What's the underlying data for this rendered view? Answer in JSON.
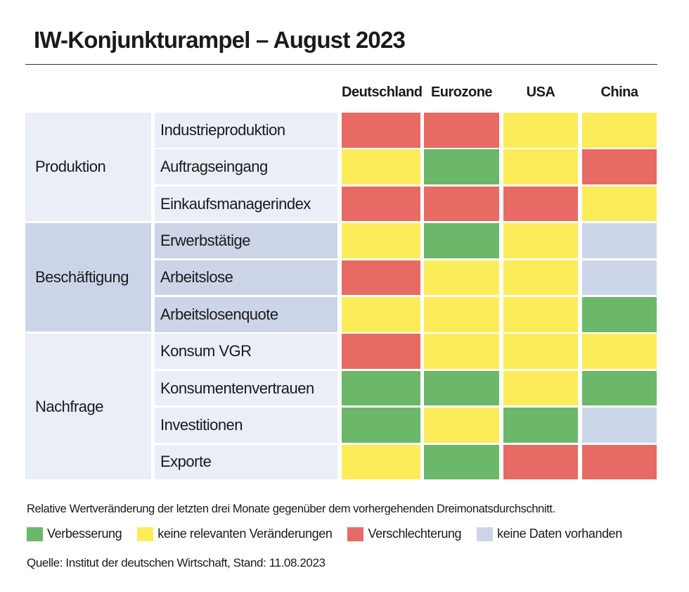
{
  "title": "IW-Konjunkturampel – August 2023",
  "colors": {
    "green": "#6bb86a",
    "yellow": "#fdec5a",
    "red": "#e86a64",
    "none": "#cdd6e8",
    "group_light": "#e9eef7",
    "group_dark": "#ccd5e8"
  },
  "chart_data": {
    "type": "table",
    "title": "IW-Konjunkturampel – August 2023",
    "columns": [
      "Deutschland",
      "Eurozone",
      "USA",
      "China"
    ],
    "groups": [
      {
        "label": "Produktion",
        "rows": [
          {
            "label": "Industrieproduktion",
            "values": [
              "red",
              "red",
              "yellow",
              "yellow"
            ]
          },
          {
            "label": "Auftragseingang",
            "values": [
              "yellow",
              "green",
              "yellow",
              "red"
            ]
          },
          {
            "label": "Einkaufsmanagerindex",
            "values": [
              "red",
              "red",
              "red",
              "yellow"
            ]
          }
        ]
      },
      {
        "label": "Beschäftigung",
        "rows": [
          {
            "label": "Erwerbstätige",
            "values": [
              "yellow",
              "green",
              "yellow",
              "none"
            ]
          },
          {
            "label": "Arbeitslose",
            "values": [
              "red",
              "yellow",
              "yellow",
              "none"
            ]
          },
          {
            "label": "Arbeitslosenquote",
            "values": [
              "yellow",
              "yellow",
              "yellow",
              "green"
            ]
          }
        ]
      },
      {
        "label": "Nachfrage",
        "rows": [
          {
            "label": "Konsum VGR",
            "values": [
              "red",
              "yellow",
              "yellow",
              "yellow"
            ]
          },
          {
            "label": "Konsumentenvertrauen",
            "values": [
              "green",
              "green",
              "yellow",
              "green"
            ]
          },
          {
            "label": "Investitionen",
            "values": [
              "green",
              "yellow",
              "green",
              "none"
            ]
          },
          {
            "label": "Exporte",
            "values": [
              "yellow",
              "green",
              "red",
              "red"
            ]
          }
        ]
      }
    ],
    "legend": [
      {
        "key": "green",
        "label": "Verbesserung"
      },
      {
        "key": "yellow",
        "label": "keine relevanten Veränderungen"
      },
      {
        "key": "red",
        "label": "Verschlechterung"
      },
      {
        "key": "none",
        "label": "keine Daten vorhanden"
      }
    ]
  },
  "note": "Relative Wertveränderung der letzten drei Monate gegenüber dem vorhergehenden Dreimonatsdurchschnitt.",
  "source": "Quelle: Institut der deutschen Wirtschaft, Stand: 11.08.2023"
}
